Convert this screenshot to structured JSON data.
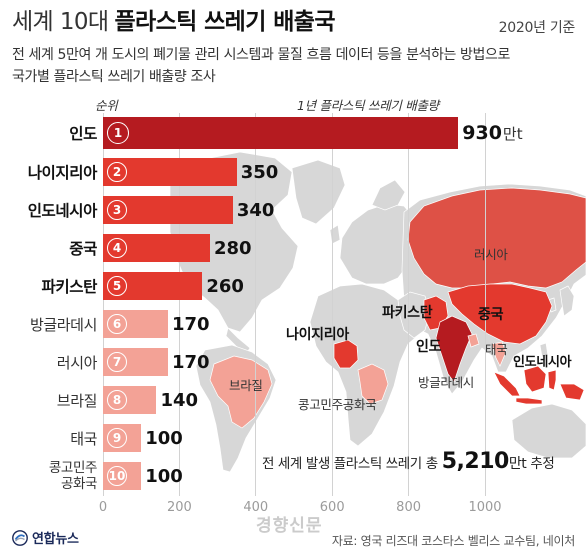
{
  "chart_data": {
    "type": "bar",
    "orientation": "horizontal",
    "title": {
      "light": "세계 10대",
      "bold": "플라스틱 쓰레기 배출국"
    },
    "date_note": "2020년 기준",
    "subtitle": [
      "전 세계 5만여 개 도시의 폐기물 관리 시스템과 물질 흐름 데이터 등을 분석하는 방법으로",
      "국가별 플라스틱 쓰레기 배출량 조사"
    ],
    "category_header": "순위",
    "value_header": "1년 플라스틱 쓰레기 배출량",
    "unit": "만t",
    "ranks": [
      1,
      2,
      3,
      4,
      5,
      6,
      7,
      8,
      9,
      10
    ],
    "categories": [
      "인도",
      "나이지리아",
      "인도네시아",
      "중국",
      "파키스탄",
      "방글라데시",
      "러시아",
      "브라질",
      "태국",
      "콩고민주\n공화국"
    ],
    "values": [
      930,
      350,
      340,
      280,
      260,
      170,
      170,
      140,
      100,
      100
    ],
    "xlim": [
      0,
      1000
    ],
    "x_ticks": [
      0,
      200,
      400,
      600,
      800,
      1000
    ],
    "grid": true,
    "bar_colors": [
      "#b51b20",
      "#e3392e",
      "#e3392e",
      "#e3392e",
      "#e3392e",
      "#f3a296",
      "#f3a296",
      "#f3a296",
      "#f3a296",
      "#f3a296"
    ]
  },
  "map": {
    "land_color": "#d7d7d7",
    "regions": {
      "russia": {
        "label": "러시아",
        "color": "#de5146"
      },
      "china": {
        "label": "중국",
        "color": "#e3392e"
      },
      "india": {
        "label": "인도",
        "color": "#b51b20"
      },
      "pakistan": {
        "label": "파키스탄",
        "color": "#e3392e"
      },
      "nigeria": {
        "label": "나이지리아",
        "color": "#e3392e"
      },
      "indonesia": {
        "label": "인도네시아",
        "color": "#e3392e"
      },
      "bangladesh": {
        "label": "방글라데시",
        "color": "#f3a296"
      },
      "thailand": {
        "label": "태국",
        "color": "#f3a296"
      },
      "brazil": {
        "label": "브라질",
        "color": "#f3a296"
      },
      "drcongo": {
        "label": "콩고민주공화국",
        "color": "#f3a296"
      }
    }
  },
  "total_note": {
    "prefix": "전 세계 발생 플라스틱 쓰레기 총",
    "value": "5,210",
    "unit": "만t",
    "suffix": "추정"
  },
  "footer": {
    "logo_text": "연합뉴스",
    "logo_icon": "yonhap-logo-icon",
    "source": "자료: 영국 리즈대 코스타스 벨리스 교수팀, 네이처",
    "watermark": "경향신문"
  }
}
